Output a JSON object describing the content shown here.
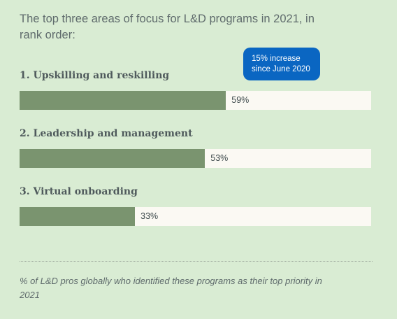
{
  "subtitle": "The top three areas of focus for L&D programs in 2021, in rank order:",
  "callout": {
    "line1": "15% increase",
    "line2": "since June 2020"
  },
  "footnote": "% of L&D pros globally who identified these programs as their top priority in 2021",
  "colors": {
    "background": "#d9ecd3",
    "bar_fill": "#7a946f",
    "bar_track": "#fbf9f3",
    "callout": "#0a66c2"
  },
  "chart_data": {
    "type": "bar",
    "orientation": "horizontal",
    "title": "The top three areas of focus for L&D programs in 2021, in rank order:",
    "categories": [
      "1. Upskilling and reskilling",
      "2. Leadership and management",
      "3. Virtual onboarding"
    ],
    "values": [
      59,
      53,
      33
    ],
    "value_labels": [
      "59%",
      "53%",
      "33%"
    ],
    "xlim": [
      0,
      100
    ],
    "annotation": "15% increase since June 2020",
    "grid": false,
    "legend": "none"
  }
}
